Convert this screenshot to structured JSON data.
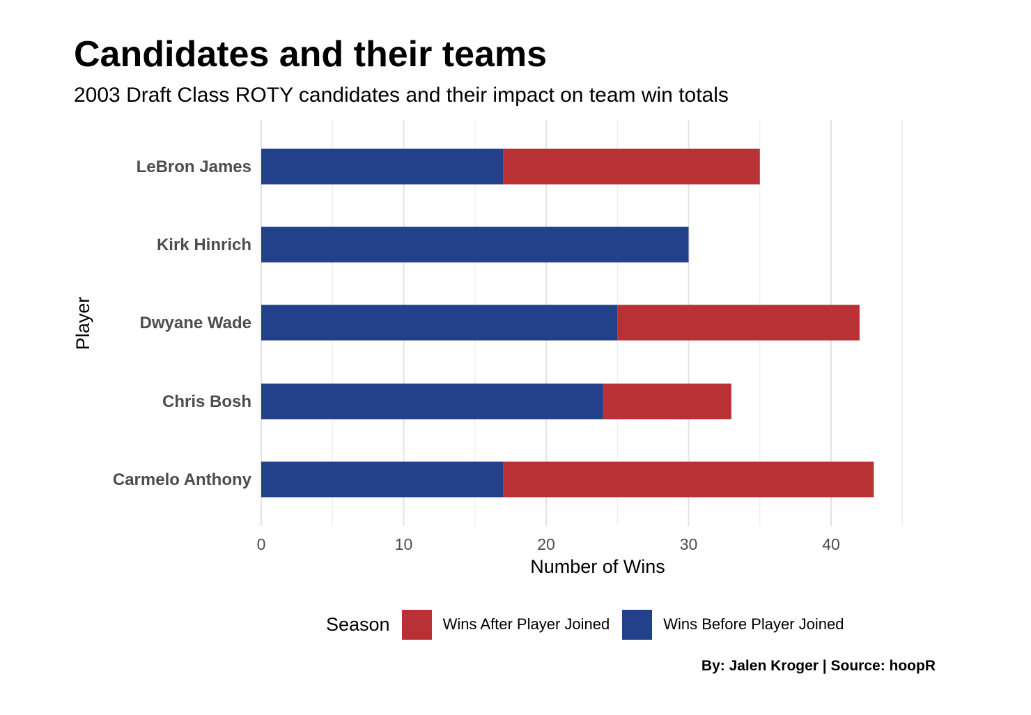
{
  "chart_data": {
    "type": "bar",
    "orientation": "horizontal",
    "stacked": true,
    "title": "Candidates and their teams",
    "subtitle": "2003 Draft Class ROTY candidates and their impact on team win totals",
    "xlabel": "Number of Wins",
    "ylabel": "Player",
    "caption": "By: Jalen Kroger | Source: hoopR",
    "categories": [
      "LeBron James",
      "Kirk Hinrich",
      "Dwyane Wade",
      "Chris Bosh",
      "Carmelo Anthony"
    ],
    "series": [
      {
        "name": "Wins Before Player Joined",
        "color": "#22418a",
        "values": [
          17,
          30,
          25,
          24,
          17
        ]
      },
      {
        "name": "Wins After Player Joined",
        "color": "#b93035",
        "values": [
          18,
          0,
          17,
          9,
          26
        ]
      }
    ],
    "xlim": [
      0,
      45
    ],
    "xticks": [
      "0",
      "10",
      "20",
      "30",
      "40"
    ],
    "grid": true,
    "legend": {
      "title": "Season",
      "placement": "bottom",
      "entries": [
        {
          "label": "Wins After Player Joined",
          "color": "#b93035"
        },
        {
          "label": "Wins Before Player Joined",
          "color": "#22418a"
        }
      ]
    }
  }
}
